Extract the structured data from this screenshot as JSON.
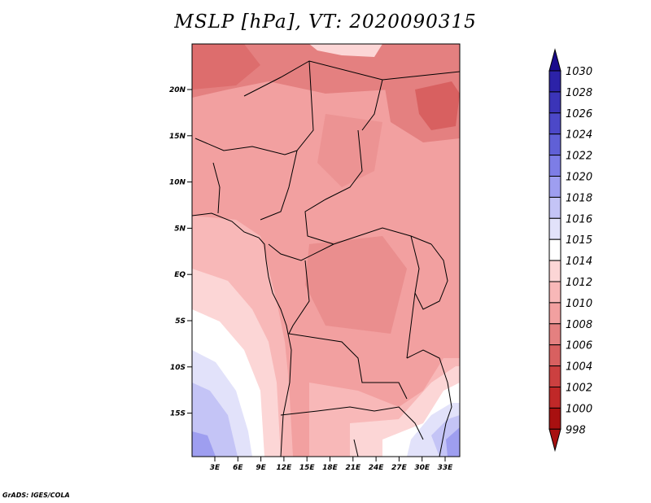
{
  "title": "MSLP [hPa], VT: 2020090315",
  "footer": "GrADS: IGES/COLA",
  "map": {
    "lon_ticks": [
      "3E",
      "6E",
      "9E",
      "12E",
      "15E",
      "18E",
      "21E",
      "24E",
      "27E",
      "30E",
      "33E"
    ],
    "lat_ticks": [
      "20N",
      "15N",
      "10N",
      "5N",
      "EQ",
      "5S",
      "10S",
      "15S"
    ]
  },
  "colorbar": {
    "levels": [
      "1030",
      "1028",
      "1026",
      "1024",
      "1022",
      "1020",
      "1018",
      "1016",
      "1015",
      "1014",
      "1012",
      "1010",
      "1008",
      "1006",
      "1004",
      "1002",
      "1000",
      "998"
    ],
    "colors": [
      "#1a0a8c",
      "#2c22a8",
      "#3b34b8",
      "#4c48c8",
      "#6060d6",
      "#7d7de6",
      "#9e9ef0",
      "#c4c4f6",
      "#e2e2fa",
      "#ffffff",
      "#fcd6d6",
      "#f8b8b8",
      "#f2a0a0",
      "#e48080",
      "#d86060",
      "#cc4040",
      "#c02828",
      "#a81010"
    ]
  }
}
